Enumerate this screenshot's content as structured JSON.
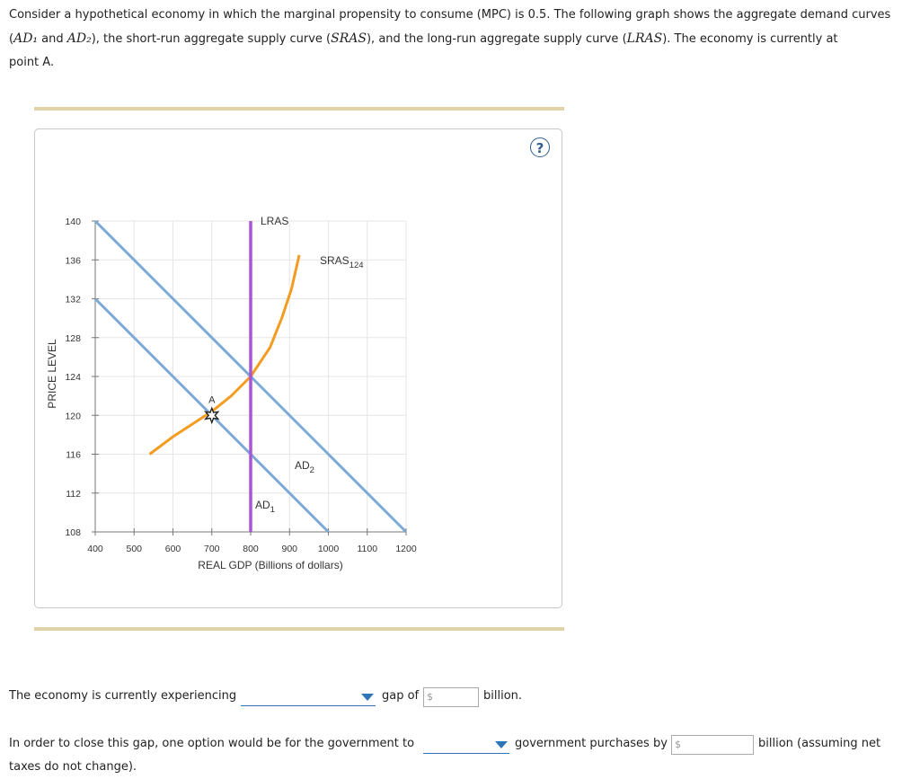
{
  "intro": {
    "p1": "Consider a hypothetical economy in which the marginal propensity to consume (MPC) is 0.5. The following graph shows the aggregate demand curves",
    "p2a": "(",
    "ad1": "AD₁",
    "p2b": " and ",
    "ad2": "AD₂",
    "p2c": "), the short-run aggregate supply curve (",
    "sras": "SRAS",
    "p2d": "), and the long-run aggregate supply curve (",
    "lras": "LRAS",
    "p2e": "). The economy is currently at",
    "p3": "point A."
  },
  "help_symbol": "?",
  "colors": {
    "ad": "#7da9d6",
    "sras": "#f39c1f",
    "lras": "#a855d6",
    "grid": "#e6e6e6",
    "rule": "#e0d3a7"
  },
  "chart_data": {
    "type": "line",
    "xlabel": "REAL GDP (Billions of dollars)",
    "ylabel": "PRICE LEVEL",
    "xlim": [
      400,
      1200
    ],
    "ylim": [
      108,
      140
    ],
    "x_ticks": [
      400,
      500,
      600,
      700,
      800,
      900,
      1000,
      1100,
      1200
    ],
    "y_ticks": [
      108,
      112,
      116,
      120,
      124,
      128,
      132,
      136,
      140
    ],
    "grid": true,
    "series": [
      {
        "name": "AD",
        "sub": "1",
        "points": [
          [
            400,
            132
          ],
          [
            600,
            124
          ],
          [
            800,
            116
          ],
          [
            1000,
            108
          ]
        ]
      },
      {
        "name": "AD",
        "sub": "2",
        "points": [
          [
            400,
            140
          ],
          [
            600,
            132
          ],
          [
            800,
            124
          ],
          [
            1000,
            116
          ],
          [
            1200,
            108
          ]
        ]
      },
      {
        "name": "SRAS",
        "sub": "124",
        "points": [
          [
            540,
            116
          ],
          [
            600,
            117.8
          ],
          [
            650,
            119.1
          ],
          [
            700,
            120.4
          ],
          [
            750,
            122
          ],
          [
            800,
            124
          ],
          [
            850,
            127
          ],
          [
            880,
            130
          ],
          [
            905,
            133
          ],
          [
            925,
            136.5
          ]
        ]
      },
      {
        "name": "LRAS",
        "sub": "",
        "points": [
          [
            800,
            108
          ],
          [
            800,
            140
          ]
        ]
      }
    ],
    "annotations": [
      {
        "label": "A",
        "x": 700,
        "y": 120
      }
    ]
  },
  "questions": {
    "q1_prefix": "The economy is currently experiencing",
    "q1_mid": "gap of",
    "q1_suffix": "billion.",
    "q2_prefix": "In order to close this gap, one option would be for the government to",
    "q2_mid": "government purchases by",
    "q2_suffix": "billion (assuming net",
    "q2_cont": "taxes do not change).",
    "dollar": "$"
  }
}
